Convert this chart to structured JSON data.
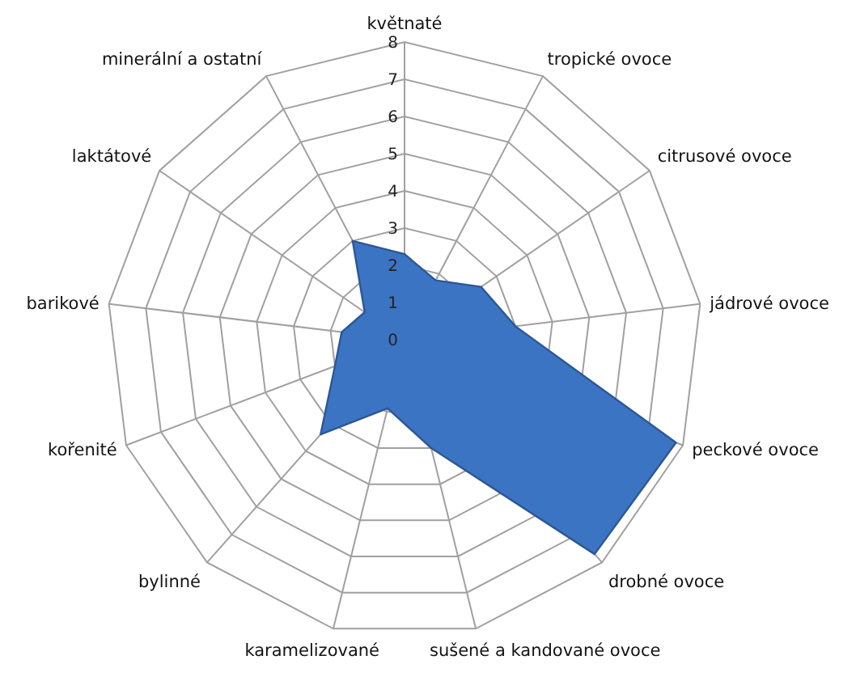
{
  "chart_data": {
    "type": "radar",
    "categories": [
      "květnaté",
      "tropické ovoce",
      "citrusové ovoce",
      "jádrové ovoce",
      "peckové ovoce",
      "drobné ovoce",
      "sušené a kandované ovoce",
      "karamelizované",
      "bylinné",
      "kořenité",
      "barikové",
      "laktátové",
      "minerální a ostatní"
    ],
    "series": [
      {
        "color": "#3c74c4",
        "values": [
          2.3,
          1.8,
          2.5,
          3,
          7.8,
          7.7,
          3,
          1.9,
          3.4,
          2,
          1.7,
          1.3,
          3
        ]
      }
    ],
    "ylim": [
      0,
      8
    ],
    "yticks": [
      0,
      1,
      2,
      3,
      4,
      5,
      6,
      7,
      8
    ],
    "grid": true
  }
}
